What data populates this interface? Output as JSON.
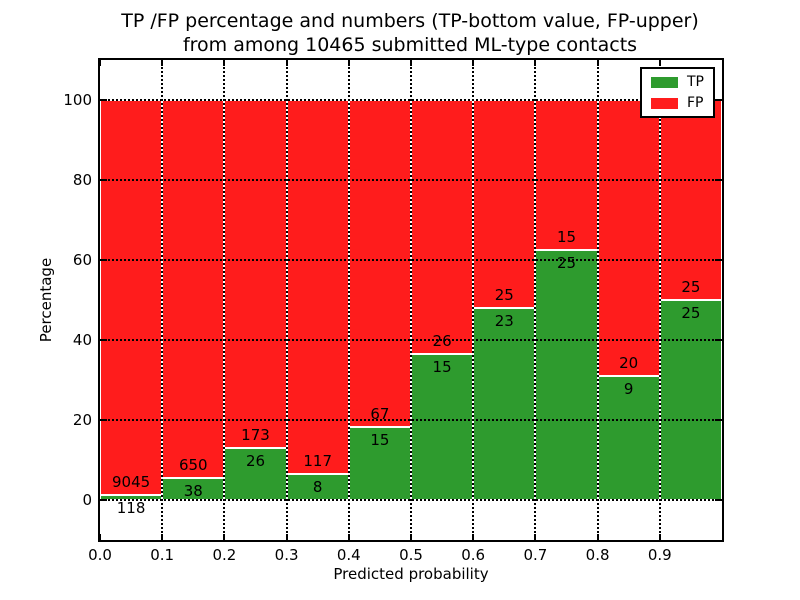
{
  "chart_data": {
    "type": "bar",
    "stacked": true,
    "title_lines": [
      "TP /FP percentage and numbers (TP-bottom value, FP-upper)",
      "from among 10465 submitted ML-type contacts"
    ],
    "total_submitted_contacts": 10465,
    "xlabel": "Predicted probability",
    "ylabel": "Percentage",
    "xlim": [
      0.0,
      1.0
    ],
    "ylim": [
      -10,
      110
    ],
    "x_tick_labels": [
      "0.0",
      "0.1",
      "0.2",
      "0.3",
      "0.4",
      "0.5",
      "0.6",
      "0.7",
      "0.8",
      "0.9"
    ],
    "y_tick_values": [
      0,
      20,
      40,
      60,
      80,
      100
    ],
    "grid": true,
    "grid_style": "dotted",
    "bins": [
      [
        0.0,
        0.1
      ],
      [
        0.1,
        0.2
      ],
      [
        0.2,
        0.3
      ],
      [
        0.3,
        0.4
      ],
      [
        0.4,
        0.5
      ],
      [
        0.5,
        0.6
      ],
      [
        0.6,
        0.7
      ],
      [
        0.7,
        0.8
      ],
      [
        0.8,
        0.9
      ],
      [
        0.9,
        1.0
      ]
    ],
    "series": [
      {
        "name": "TP",
        "color": "#2e9b2e",
        "counts": [
          118,
          38,
          26,
          8,
          15,
          15,
          23,
          25,
          9,
          25
        ],
        "percent_of_bin": [
          1.3,
          5.5,
          13.1,
          6.4,
          18.3,
          36.6,
          47.9,
          62.5,
          31.0,
          50.0
        ]
      },
      {
        "name": "FP",
        "color": "#ff1c1c",
        "counts": [
          9045,
          650,
          173,
          117,
          67,
          26,
          25,
          15,
          20,
          25
        ],
        "percent_of_bin": [
          98.7,
          94.5,
          86.9,
          93.6,
          81.7,
          63.4,
          52.1,
          37.5,
          69.0,
          50.0
        ]
      }
    ],
    "legend": {
      "position": "upper right",
      "entries": [
        {
          "label": "TP",
          "color": "#2e9b2e"
        },
        {
          "label": "FP",
          "color": "#ff1c1c"
        }
      ]
    }
  },
  "colors": {
    "tp": "#2e9b2e",
    "fp": "#ff1c1c",
    "background": "#ffffff",
    "text": "#000000",
    "grid": "#000000",
    "frame": "#000000"
  }
}
